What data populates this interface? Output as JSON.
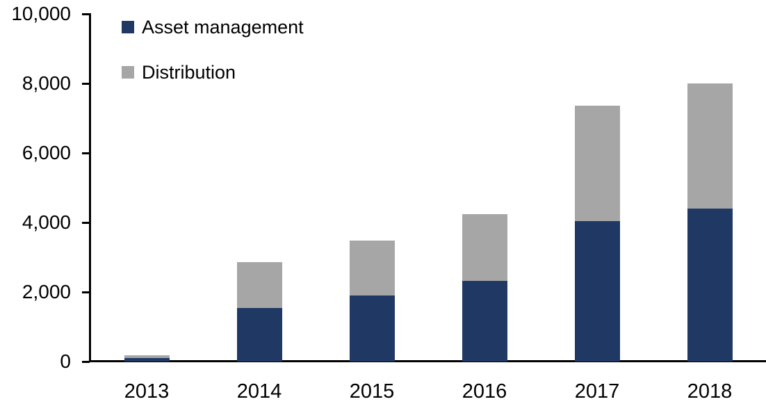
{
  "chart_data": {
    "type": "bar",
    "stacked": true,
    "title": "",
    "xlabel": "",
    "ylabel": "",
    "categories": [
      "2013",
      "2014",
      "2015",
      "2016",
      "2017",
      "2018"
    ],
    "series": [
      {
        "name": "Asset management",
        "color": "#1F3864",
        "values": [
          100,
          1550,
          1900,
          2320,
          4050,
          4400
        ]
      },
      {
        "name": "Distribution",
        "color": "#A6A6A6",
        "values": [
          90,
          1320,
          1580,
          1930,
          3320,
          3600
        ]
      }
    ],
    "totals": [
      190,
      2870,
      3480,
      4250,
      7370,
      8000
    ],
    "ylim": [
      0,
      10000
    ],
    "ytick_interval": 2000,
    "yticks": [
      0,
      2000,
      4000,
      6000,
      8000,
      10000
    ],
    "ytick_labels": [
      "0",
      "2,000",
      "4,000",
      "6,000",
      "8,000",
      "10,000"
    ],
    "grid": false,
    "legend_position": "top-left-inside",
    "axis_color": "#000000",
    "background_color": "#FFFFFF"
  }
}
